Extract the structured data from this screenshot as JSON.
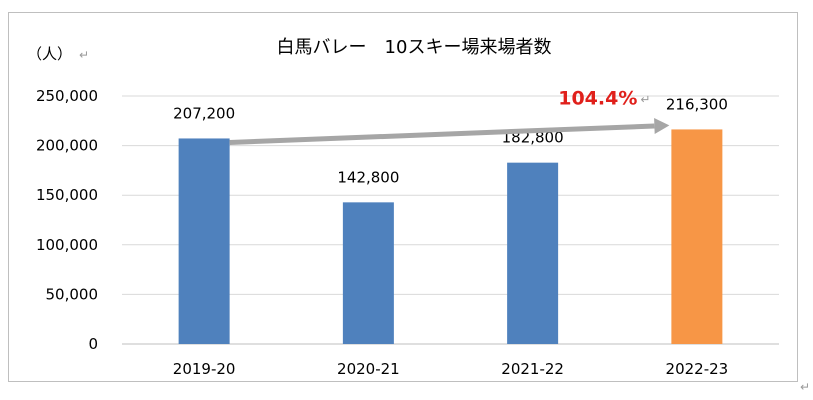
{
  "chart_data": {
    "type": "bar",
    "title": "白馬バレー　10スキー場来場者数",
    "ylabel": "（人）",
    "categories": [
      "2019-20",
      "2020-21",
      "2021-22",
      "2022-23"
    ],
    "values": [
      207200,
      142800,
      182800,
      216300
    ],
    "data_labels": [
      "207,200",
      "142,800",
      "182,800",
      "216,300"
    ],
    "ylim": [
      0,
      250000
    ],
    "yticks": [
      0,
      50000,
      100000,
      150000,
      200000,
      250000
    ],
    "ytick_labels": [
      "0",
      "50,000",
      "100,000",
      "150,000",
      "200,000",
      "250,000"
    ],
    "grid": true,
    "bar_colors": [
      "#4f81bd",
      "#4f81bd",
      "#4f81bd",
      "#f79646"
    ],
    "annotation": {
      "text": "104.4%",
      "from_category": "2019-20",
      "to_category": "2022-23",
      "text_color": "#e0201b",
      "arrow_color": "#a6a6a6"
    },
    "return_mark": "↵"
  }
}
